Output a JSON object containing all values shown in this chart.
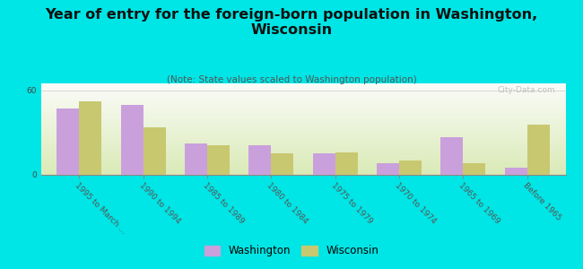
{
  "title": "Year of entry for the foreign-born population in Washington,\nWisconsin",
  "subtitle": "(Note: State values scaled to Washington population)",
  "categories": [
    "1995 to March ...",
    "1990 to 1994",
    "1985 to 1989",
    "1980 to 1984",
    "1975 to 1979",
    "1970 to 1974",
    "1965 to 1969",
    "Before 1965"
  ],
  "washington_values": [
    47,
    50,
    22,
    21,
    15,
    8,
    27,
    5
  ],
  "wisconsin_values": [
    52,
    34,
    21,
    15,
    16,
    10,
    8,
    36
  ],
  "washington_color": "#c9a0dc",
  "wisconsin_color": "#c8c870",
  "background_color": "#00e5e5",
  "ylabel_max": 60,
  "yticks": [
    0,
    60
  ],
  "bar_width": 0.35,
  "title_fontsize": 11.5,
  "subtitle_fontsize": 7.5,
  "tick_fontsize": 6.5,
  "legend_fontsize": 8.5,
  "watermark": "City-Data.com"
}
